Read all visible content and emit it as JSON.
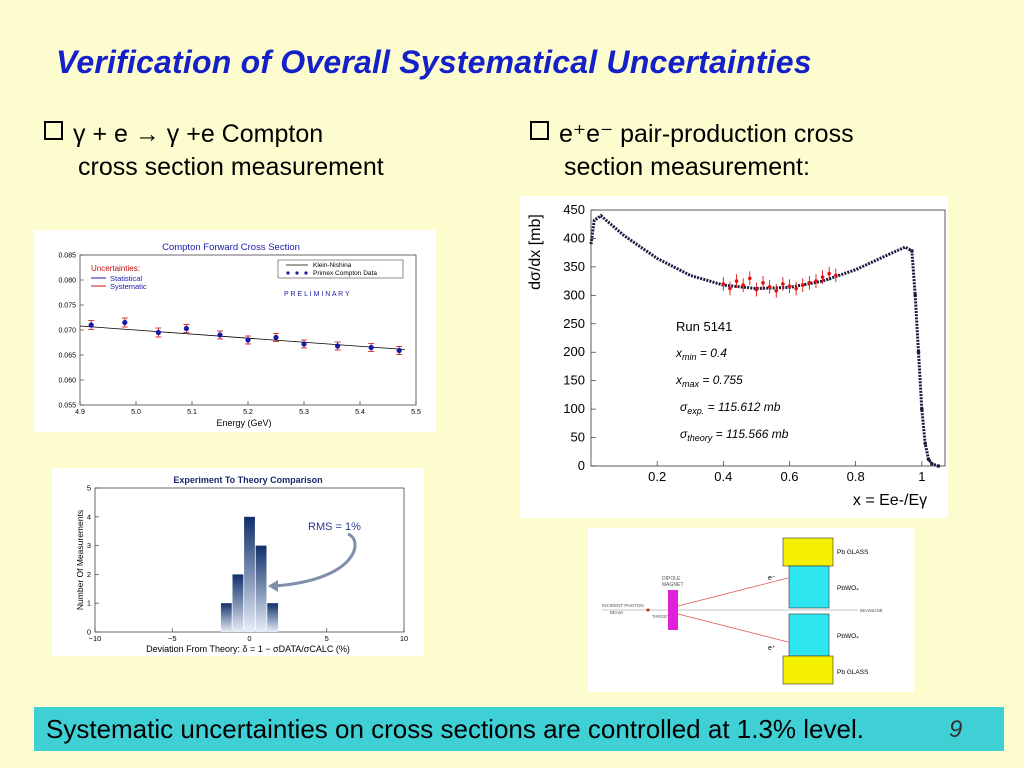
{
  "title": "Verification of Overall Systematical Uncertainties",
  "bullet_left": {
    "line1": "γ + e → γ +e   Compton",
    "line2": "cross section measurement"
  },
  "bullet_right": {
    "line1": "e⁺e⁻ pair-production cross",
    "line2": "section measurement:"
  },
  "footer": "Systematic uncertainties on cross sections are controlled at 1.3% level.",
  "page_number": "9",
  "chart_data": [
    {
      "type": "scatter",
      "title": "Compton Forward Cross Section",
      "xlabel": "Energy (GeV)",
      "ylabel": "",
      "xlim": [
        4.9,
        5.5
      ],
      "ylim": [
        0.055,
        0.085
      ],
      "x_ticks": [
        "4.9",
        "5.0",
        "5.1",
        "5.2",
        "5.3",
        "5.4",
        "5.5"
      ],
      "y_ticks": [
        "0.055",
        "0.060",
        "0.065",
        "0.070",
        "0.075",
        "0.080",
        "0.085"
      ],
      "legend": [
        "Klein-Nishina",
        "Primex Compton Data"
      ],
      "legend_placement": "top-right",
      "uncertainty_legend_title": "Uncertainties:",
      "uncertainty_legend": [
        "Statistical",
        "Systematic"
      ],
      "annotation": "P R E L I M I N A R Y",
      "colors": {
        "data": "#1a1aa8",
        "statistical": "#1a1aa8",
        "systematic": "#d01010",
        "line": "#000000"
      },
      "series": [
        {
          "name": "Primex Compton Data",
          "x": [
            4.92,
            4.98,
            5.04,
            5.09,
            5.15,
            5.2,
            5.25,
            5.3,
            5.36,
            5.42,
            5.47
          ],
          "y": [
            0.071,
            0.0715,
            0.0695,
            0.0703,
            0.069,
            0.068,
            0.0685,
            0.0672,
            0.0668,
            0.0665,
            0.0659
          ],
          "err": [
            0.0009,
            0.0009,
            0.0009,
            0.0008,
            0.0008,
            0.0008,
            0.0008,
            0.0008,
            0.0008,
            0.0008,
            0.0008
          ]
        },
        {
          "name": "Klein-Nishina",
          "x": [
            4.9,
            5.48
          ],
          "y": [
            0.0708,
            0.0661
          ]
        }
      ]
    },
    {
      "type": "bar",
      "title": "Experiment To Theory Comparison",
      "xlabel": "Deviation From Theory: δ = 1 − σDATA/σCALC (%)",
      "ylabel": "Number Of Measurements",
      "xlim": [
        -10,
        10
      ],
      "ylim": [
        0,
        5
      ],
      "x_ticks": [
        "−10",
        "−5",
        "0",
        "5",
        "10"
      ],
      "y_ticks": [
        "0",
        "1",
        "2",
        "3",
        "4",
        "5"
      ],
      "bins": [
        -1.5,
        -0.75,
        0,
        0.75,
        1.5
      ],
      "values": [
        1,
        2,
        4,
        3,
        1
      ],
      "bin_width": 0.7,
      "annotation": "RMS = 1%",
      "colors": {
        "bar_top": "#10306a",
        "bar_bottom": "#e8eef8",
        "annotation": "#2a3a8a"
      }
    },
    {
      "type": "scatter",
      "title": "",
      "ylabel": "dσ/dx [mb]",
      "xlabel": "x = Ee-/Eγ",
      "xlim": [
        0,
        1.07
      ],
      "ylim": [
        0,
        450
      ],
      "x_ticks": [
        "0.2",
        "0.4",
        "0.6",
        "0.8",
        "1"
      ],
      "y_ticks": [
        "0",
        "50",
        "100",
        "150",
        "200",
        "250",
        "300",
        "350",
        "400",
        "450"
      ],
      "annotations": {
        "run": "Run 5141",
        "xmin_label": "x",
        "xmin_sub": "min",
        "xmin_value": " = 0.4",
        "xmax_label": "x",
        "xmax_sub": "max",
        "xmax_value": " = 0.755",
        "exp_label": "σ",
        "exp_sub": "exp.",
        "exp_value": " = 115.612 mb",
        "theory_label": "σ",
        "theory_sub": "theory",
        "theory_value": " = 115.566 mb"
      },
      "series": [
        {
          "name": "theory",
          "x": [
            0.0,
            0.01,
            0.03,
            0.05,
            0.1,
            0.2,
            0.3,
            0.4,
            0.5,
            0.6,
            0.7,
            0.8,
            0.9,
            0.95,
            0.97,
            0.98,
            0.99,
            1.0,
            1.01,
            1.02,
            1.03,
            1.05
          ],
          "y": [
            390,
            432,
            440,
            430,
            405,
            365,
            335,
            318,
            312,
            314,
            325,
            345,
            372,
            385,
            378,
            300,
            200,
            100,
            40,
            12,
            4,
            0
          ]
        },
        {
          "name": "data",
          "x": [
            0.4,
            0.42,
            0.44,
            0.46,
            0.48,
            0.5,
            0.52,
            0.54,
            0.56,
            0.58,
            0.6,
            0.62,
            0.64,
            0.66,
            0.68,
            0.7,
            0.72,
            0.74
          ],
          "y": [
            320,
            312,
            325,
            318,
            330,
            310,
            322,
            315,
            308,
            320,
            316,
            312,
            318,
            322,
            325,
            332,
            338,
            335
          ],
          "err": [
            12,
            12,
            12,
            12,
            12,
            12,
            12,
            12,
            12,
            12,
            12,
            12,
            12,
            12,
            12,
            12,
            12,
            12
          ]
        }
      ]
    },
    {
      "type": "diagram",
      "labels": {
        "pbglass_top": "Pb GLASS",
        "pbwo4_top": "PbWO₄",
        "pbwo4_bottom": "PbWO₄",
        "pbglass_bottom": "Pb GLASS",
        "dipole1": "DIPOLE",
        "dipole2": "MAGNET",
        "electron": "e⁻",
        "positron": "e⁺",
        "beam1": "INCIDENT PHOTON",
        "beam2": "BEAM",
        "target": "TARGET",
        "beamline": "BEAMLINE"
      },
      "colors": {
        "glass": "#f4f000",
        "pbwo4": "#2de6ef",
        "magnet": "#e020d8",
        "ray": "#e05050"
      }
    }
  ]
}
